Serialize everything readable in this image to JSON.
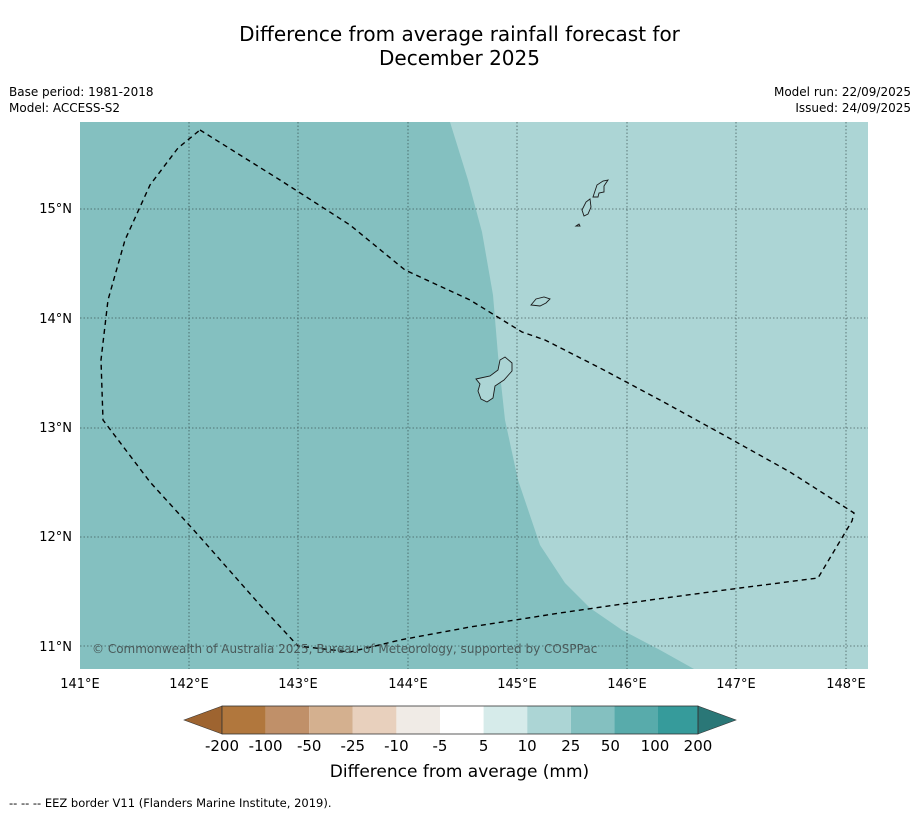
{
  "title": {
    "line1": "Difference from average rainfall forecast for",
    "line2": "December 2025"
  },
  "meta": {
    "base_period": "Base period: 1981-2018",
    "model": "Model: ACCESS-S2",
    "model_run": "Model run: 22/09/2025",
    "issued": "Issued: 24/09/2025"
  },
  "map": {
    "lat_labels": [
      "15°N",
      "14°N",
      "13°N",
      "12°N",
      "11°N"
    ],
    "lon_labels": [
      "141°E",
      "142°E",
      "143°E",
      "144°E",
      "145°E",
      "146°E",
      "147°E",
      "148°E"
    ],
    "copyright": "© Commonwealth of Australia 2025, Bureau of Meteorology, supported by COSPPac",
    "region_colors": {
      "west": "#84c0c0",
      "east": "#acd5d5"
    }
  },
  "colorbar": {
    "label": "Difference from average (mm)",
    "ticks": [
      "-200",
      "-100",
      "-50",
      "-25",
      "-10",
      "-5",
      "5",
      "10",
      "25",
      "50",
      "100",
      "200"
    ],
    "colors": [
      "#9e6430",
      "#b1773d",
      "#c09069",
      "#d4b08f",
      "#e8d0bd",
      "#f0ebe6",
      "#ffffff",
      "#d6ebea",
      "#acd5d5",
      "#84c0c0",
      "#58abab",
      "#369b9b",
      "#2a7777"
    ]
  },
  "footnote": "--  --  -- EEZ border V11 (Flanders Marine Institute, 2019)."
}
